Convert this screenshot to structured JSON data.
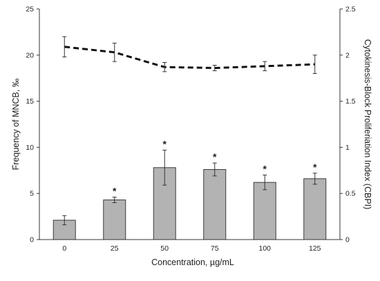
{
  "chart_data": {
    "type": "bar",
    "xlabel": "Concentration, µg/mL",
    "ylabel": "Frequency of MNCB, ‰",
    "y2label": "Cytokinesis-Block Proliferiation Index (CBPI)",
    "categories": [
      "0",
      "25",
      "50",
      "75",
      "100",
      "125"
    ],
    "ylim": [
      0,
      25
    ],
    "y2lim": [
      0,
      2.5
    ],
    "yticks": [
      "0",
      "5",
      "10",
      "15",
      "20",
      "25"
    ],
    "y2ticks": [
      "0",
      "0.5",
      "1",
      "1.5",
      "2",
      "2.5"
    ],
    "grid": false,
    "legend": "none",
    "colors": {
      "bar_fill": "#b3b3b3",
      "bar_stroke": "#3a3a3a",
      "line": "#111111",
      "axis": "#333333"
    },
    "series": [
      {
        "kind": "bar",
        "axis": "left",
        "values": [
          2.1,
          4.3,
          7.8,
          7.6,
          6.2,
          6.6
        ],
        "errors": [
          0.5,
          0.3,
          1.9,
          0.7,
          0.8,
          0.6
        ],
        "annotations": [
          "",
          "*",
          "*",
          "*",
          "*",
          "*"
        ]
      },
      {
        "kind": "line",
        "axis": "right",
        "style": "dashed",
        "values": [
          2.09,
          2.03,
          1.87,
          1.86,
          1.88,
          1.9
        ],
        "errors": [
          0.11,
          0.1,
          0.05,
          0.03,
          0.05,
          0.1
        ]
      }
    ]
  }
}
